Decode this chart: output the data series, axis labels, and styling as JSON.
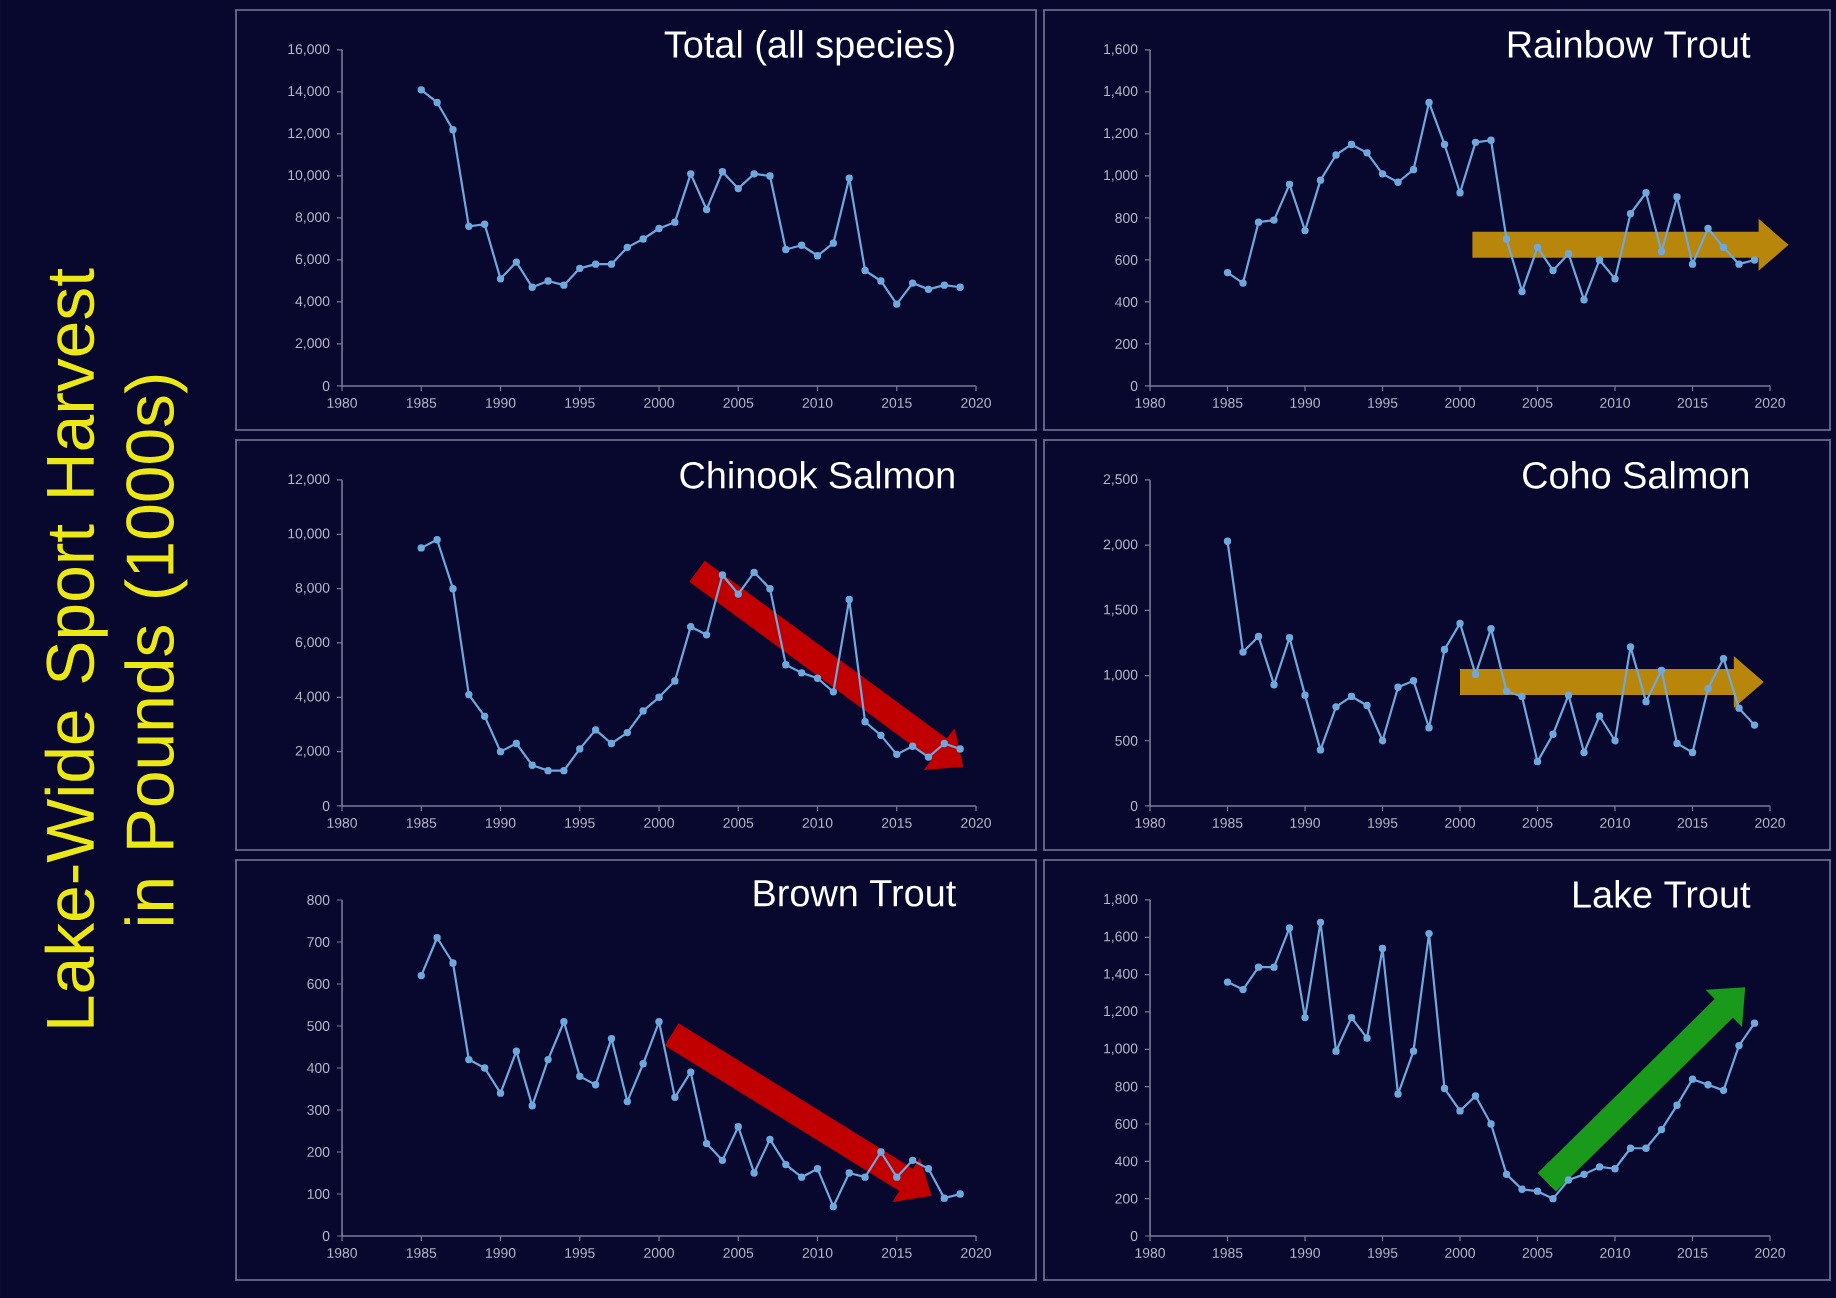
{
  "chart_data": [
    {
      "type": "line",
      "title": "Total (all species)",
      "ylabel": "Lake-Wide Sport Harvest in Pounds (1000s)",
      "color": "#6fa8dc",
      "marker": "circle",
      "x": [
        1985,
        1986,
        1987,
        1988,
        1989,
        1990,
        1991,
        1992,
        1993,
        1994,
        1995,
        1996,
        1997,
        1998,
        1999,
        2000,
        2001,
        2002,
        2003,
        2004,
        2005,
        2006,
        2007,
        2008,
        2009,
        2010,
        2011,
        2012,
        2013,
        2014,
        2015,
        2016,
        2017,
        2018,
        2019
      ],
      "values": [
        14100,
        13500,
        12200,
        7600,
        7700,
        5100,
        5900,
        4700,
        5000,
        4800,
        5600,
        5800,
        5800,
        6600,
        7000,
        7500,
        7800,
        10100,
        8400,
        10200,
        9400,
        10100,
        10000,
        6500,
        6700,
        6200,
        6800,
        9900,
        5500,
        5000,
        3900,
        4900,
        4600,
        4800,
        4700
      ],
      "xlim": [
        1980,
        2020
      ],
      "ylim": [
        0,
        16000
      ],
      "xticks": [
        1980,
        1985,
        1990,
        1995,
        2000,
        2005,
        2010,
        2015,
        2020
      ],
      "yticks": [
        0,
        {
          "value": 2000,
          "label": "2,000"
        },
        {
          "value": 4000,
          "label": "4,000"
        },
        {
          "value": 6000,
          "label": "6,000"
        },
        {
          "value": 8000,
          "label": "8,000"
        },
        {
          "value": 10000,
          "label": "10,000"
        },
        {
          "value": 12000,
          "label": "12,000"
        },
        {
          "value": 14000,
          "label": "14,000"
        },
        {
          "value": 16000,
          "label": "16,000"
        }
      ]
    },
    {
      "type": "line",
      "title": "Rainbow Trout",
      "color": "#6fa8dc",
      "marker": "circle",
      "x": [
        1985,
        1986,
        1987,
        1988,
        1989,
        1990,
        1991,
        1992,
        1993,
        1994,
        1995,
        1996,
        1997,
        1998,
        1999,
        2000,
        2001,
        2002,
        2003,
        2004,
        2005,
        2006,
        2007,
        2008,
        2009,
        2010,
        2011,
        2012,
        2013,
        2014,
        2015,
        2016,
        2017,
        2018,
        2019
      ],
      "values": [
        540,
        490,
        780,
        790,
        960,
        740,
        980,
        1100,
        1150,
        1110,
        1010,
        970,
        1030,
        1350,
        1150,
        920,
        1160,
        1170,
        700,
        450,
        660,
        550,
        630,
        410,
        600,
        510,
        820,
        920,
        640,
        900,
        580,
        750,
        660,
        580,
        600
      ],
      "xlim": [
        1980,
        2020
      ],
      "ylim": [
        0,
        1600
      ],
      "xticks": [
        1980,
        1985,
        1990,
        1995,
        2000,
        2005,
        2010,
        2015,
        2020
      ],
      "yticks": [
        0,
        200,
        400,
        600,
        800,
        {
          "value": 1000,
          "label": "1,000"
        },
        {
          "value": 1200,
          "label": "1,200"
        },
        {
          "value": 1400,
          "label": "1,400"
        },
        {
          "value": 1600,
          "label": "1,600"
        }
      ]
    },
    {
      "type": "line",
      "title": "Chinook Salmon",
      "color": "#6fa8dc",
      "marker": "circle",
      "x": [
        1985,
        1986,
        1987,
        1988,
        1989,
        1990,
        1991,
        1992,
        1993,
        1994,
        1995,
        1996,
        1997,
        1998,
        1999,
        2000,
        2001,
        2002,
        2003,
        2004,
        2005,
        2006,
        2007,
        2008,
        2009,
        2010,
        2011,
        2012,
        2013,
        2014,
        2015,
        2016,
        2017,
        2018,
        2019
      ],
      "values": [
        9500,
        9800,
        8000,
        4100,
        3300,
        2000,
        2300,
        1500,
        1300,
        1300,
        2100,
        2800,
        2300,
        2700,
        3500,
        4000,
        4600,
        6600,
        6300,
        8500,
        7800,
        8600,
        8000,
        5200,
        4900,
        4700,
        4200,
        7600,
        3100,
        2600,
        1900,
        2200,
        1800,
        2300,
        2100
      ],
      "xlim": [
        1980,
        2020
      ],
      "ylim": [
        0,
        12000
      ],
      "xticks": [
        1980,
        1985,
        1990,
        1995,
        2000,
        2005,
        2010,
        2015,
        2020
      ],
      "yticks": [
        0,
        {
          "value": 2000,
          "label": "2,000"
        },
        {
          "value": 4000,
          "label": "4,000"
        },
        {
          "value": 6000,
          "label": "6,000"
        },
        {
          "value": 8000,
          "label": "8,000"
        },
        {
          "value": 10000,
          "label": "10,000"
        },
        {
          "value": 12000,
          "label": "12,000"
        }
      ]
    },
    {
      "type": "line",
      "title": "Coho Salmon",
      "color": "#6fa8dc",
      "marker": "circle",
      "x": [
        1985,
        1986,
        1987,
        1988,
        1989,
        1990,
        1991,
        1992,
        1993,
        1994,
        1995,
        1996,
        1997,
        1998,
        1999,
        2000,
        2001,
        2002,
        2003,
        2004,
        2005,
        2006,
        2007,
        2008,
        2009,
        2010,
        2011,
        2012,
        2013,
        2014,
        2015,
        2016,
        2017,
        2018,
        2019
      ],
      "values": [
        2030,
        1180,
        1300,
        930,
        1290,
        850,
        430,
        760,
        840,
        770,
        500,
        910,
        960,
        600,
        1200,
        1400,
        1010,
        1360,
        880,
        840,
        340,
        550,
        850,
        410,
        690,
        500,
        1220,
        800,
        1040,
        480,
        410,
        900,
        1130,
        750,
        620
      ],
      "xlim": [
        1980,
        2020
      ],
      "ylim": [
        0,
        2500
      ],
      "xticks": [
        1980,
        1985,
        1990,
        1995,
        2000,
        2005,
        2010,
        2015,
        2020
      ],
      "yticks": [
        0,
        500,
        {
          "value": 1000,
          "label": "1,000"
        },
        {
          "value": 1500,
          "label": "1,500"
        },
        {
          "value": 2000,
          "label": "2,000"
        },
        {
          "value": 2500,
          "label": "2,500"
        }
      ]
    },
    {
      "type": "line",
      "title": "Brown Trout",
      "color": "#6fa8dc",
      "marker": "circle",
      "x": [
        1985,
        1986,
        1987,
        1988,
        1989,
        1990,
        1991,
        1992,
        1993,
        1994,
        1995,
        1996,
        1997,
        1998,
        1999,
        2000,
        2001,
        2002,
        2003,
        2004,
        2005,
        2006,
        2007,
        2008,
        2009,
        2010,
        2011,
        2012,
        2013,
        2014,
        2015,
        2016,
        2017,
        2018,
        2019
      ],
      "values": [
        620,
        710,
        650,
        420,
        400,
        340,
        440,
        310,
        420,
        510,
        380,
        360,
        470,
        320,
        410,
        510,
        330,
        390,
        220,
        180,
        260,
        150,
        230,
        170,
        140,
        160,
        70,
        150,
        140,
        200,
        140,
        180,
        160,
        90,
        100
      ],
      "xlim": [
        1980,
        2020
      ],
      "ylim": [
        0,
        800
      ],
      "xticks": [
        1980,
        1985,
        1990,
        1995,
        2000,
        2005,
        2010,
        2015,
        2020
      ],
      "yticks": [
        0,
        100,
        200,
        300,
        400,
        500,
        600,
        700,
        800
      ]
    },
    {
      "type": "line",
      "title": "Lake Trout",
      "color": "#6fa8dc",
      "marker": "circle",
      "x": [
        1985,
        1986,
        1987,
        1988,
        1989,
        1990,
        1991,
        1992,
        1993,
        1994,
        1995,
        1996,
        1997,
        1998,
        1999,
        2000,
        2001,
        2002,
        2003,
        2004,
        2005,
        2006,
        2007,
        2008,
        2009,
        2010,
        2011,
        2012,
        2013,
        2014,
        2015,
        2016,
        2017,
        2018,
        2019
      ],
      "values": [
        1360,
        1320,
        1440,
        1440,
        1650,
        1170,
        1680,
        990,
        1170,
        1060,
        1540,
        760,
        990,
        1620,
        790,
        670,
        750,
        600,
        330,
        250,
        240,
        200,
        300,
        330,
        370,
        360,
        470,
        470,
        570,
        700,
        840,
        810,
        780,
        1020,
        1140
      ],
      "xlim": [
        1980,
        2020
      ],
      "ylim": [
        0,
        1800
      ],
      "xticks": [
        1980,
        1985,
        1990,
        1995,
        2000,
        2005,
        2010,
        2015,
        2020
      ],
      "yticks": [
        0,
        200,
        400,
        600,
        800,
        {
          "value": 1000,
          "label": "1,000"
        },
        {
          "value": 1200,
          "label": "1,200"
        },
        {
          "value": 1400,
          "label": "1,400"
        },
        {
          "value": 1600,
          "label": "1,600"
        },
        {
          "value": 1800,
          "label": "1,800"
        }
      ]
    }
  ]
}
